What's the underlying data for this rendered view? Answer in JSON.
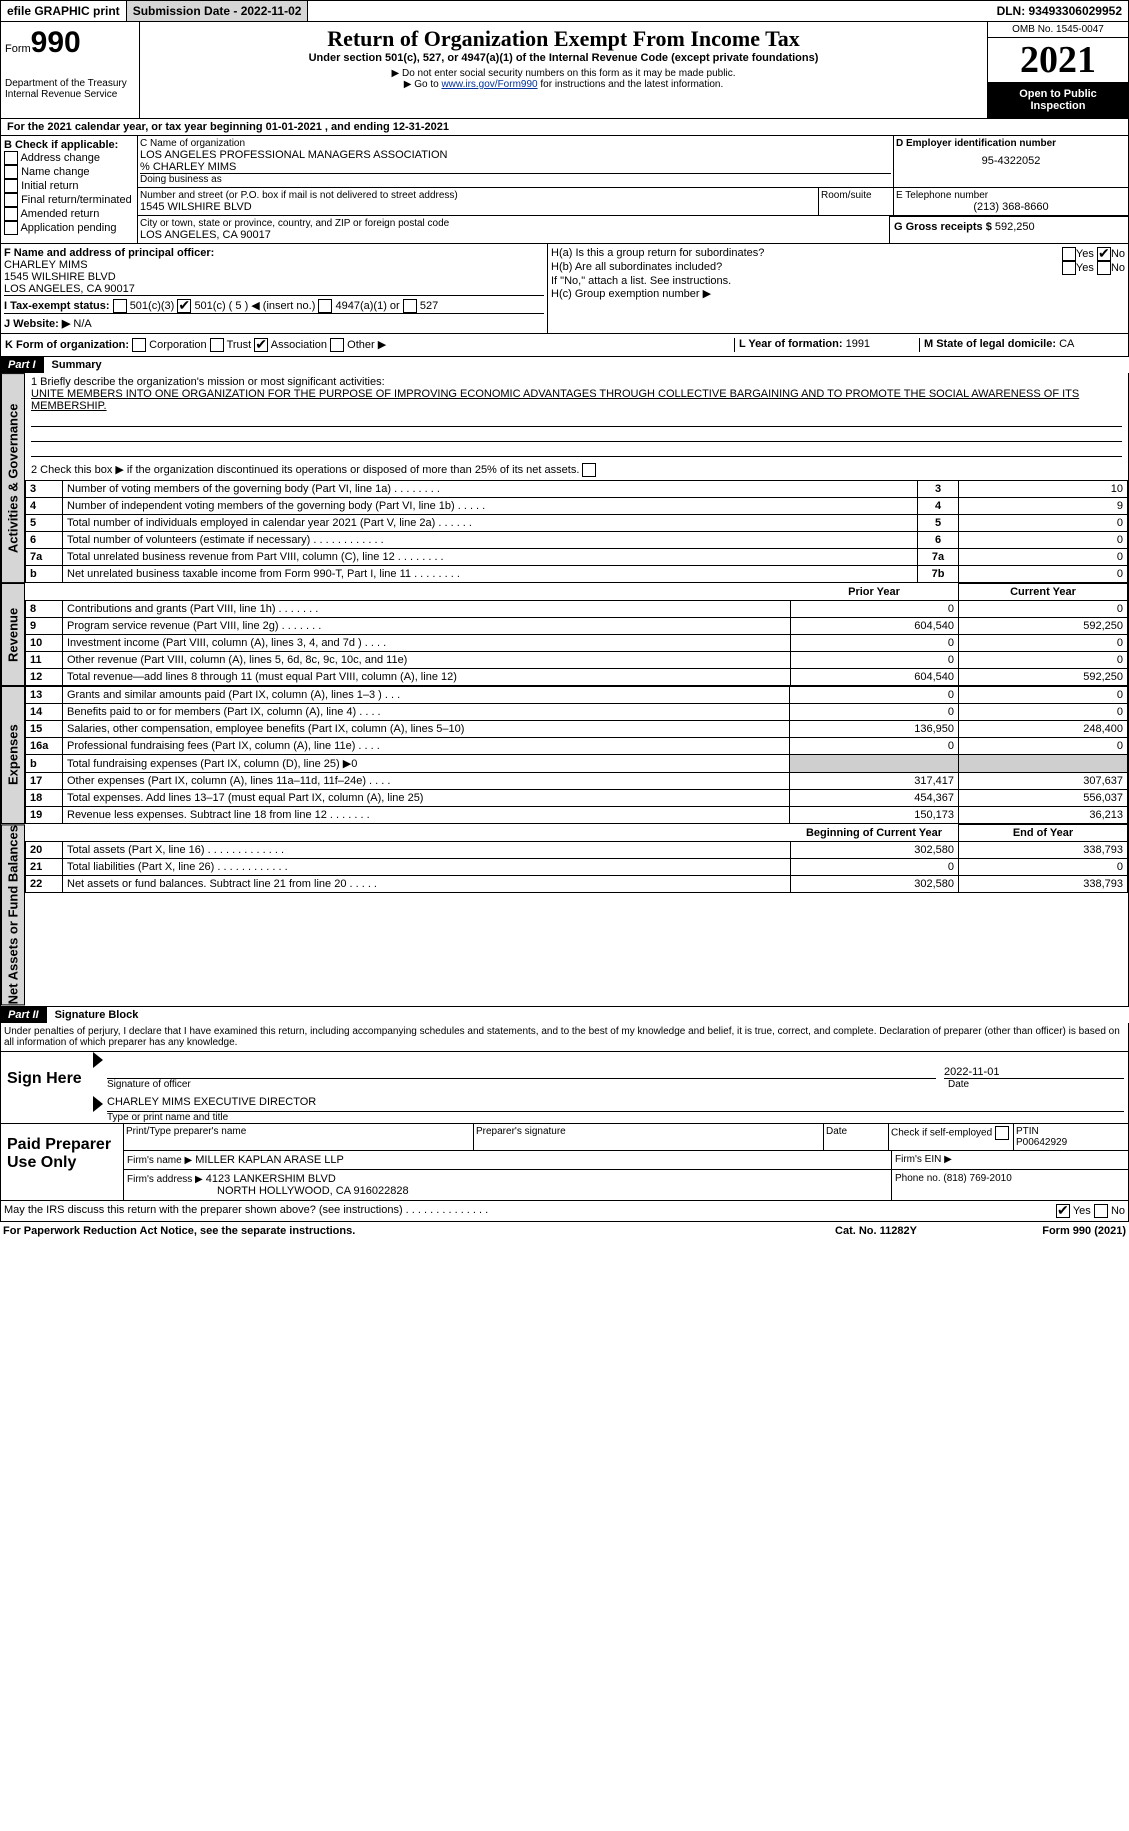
{
  "topbar": {
    "efile": "efile GRAPHIC print",
    "submission_label": "Submission Date - 2022-11-02",
    "dln": "DLN: 93493306029952"
  },
  "header": {
    "form": "990",
    "form_prefix": "Form",
    "title": "Return of Organization Exempt From Income Tax",
    "subtitle": "Under section 501(c), 527, or 4947(a)(1) of the Internal Revenue Code (except private foundations)",
    "note1": "▶ Do not enter social security numbers on this form as it may be made public.",
    "note2_pre": "▶ Go to ",
    "note2_link": "www.irs.gov/Form990",
    "note2_post": " for instructions and the latest information.",
    "dept": "Department of the Treasury",
    "irs": "Internal Revenue Service",
    "omb": "OMB No. 1545-0047",
    "year": "2021",
    "open": "Open to Public Inspection"
  },
  "periodA": "For the 2021 calendar year, or tax year beginning 01-01-2021   , and ending 12-31-2021",
  "boxB": {
    "label": "B Check if applicable:",
    "items": [
      "Address change",
      "Name change",
      "Initial return",
      "Final return/terminated",
      "Amended return",
      "Application pending"
    ]
  },
  "boxC": {
    "label": "C Name of organization",
    "line1": "LOS ANGELES PROFESSIONAL MANAGERS ASSOCIATION",
    "line2": "% CHARLEY MIMS",
    "dba_label": "Doing business as",
    "addr_label": "Number and street (or P.O. box if mail is not delivered to street address)",
    "room_label": "Room/suite",
    "addr": "1545 WILSHIRE BLVD",
    "city_label": "City or town, state or province, country, and ZIP or foreign postal code",
    "city": "LOS ANGELES, CA  90017"
  },
  "boxD": {
    "label": "D Employer identification number",
    "value": "95-4322052"
  },
  "boxE": {
    "label": "E Telephone number",
    "value": "(213) 368-8660"
  },
  "boxG": {
    "label": "G Gross receipts $",
    "value": "592,250"
  },
  "boxF": {
    "label": "F  Name and address of principal officer:",
    "name": "CHARLEY MIMS",
    "addr1": "1545 WILSHIRE BLVD",
    "addr2": "LOS ANGELES, CA  90017"
  },
  "boxH": {
    "a": "H(a)  Is this a group return for subordinates?",
    "b": "H(b)  Are all subordinates included?",
    "note": "If \"No,\" attach a list. See instructions.",
    "c": "H(c)  Group exemption number ▶",
    "yes": "Yes",
    "no": "No"
  },
  "boxI": {
    "label": "I   Tax-exempt status:",
    "c3": "501(c)(3)",
    "c": "501(c) ( 5 ) ◀ (insert no.)",
    "a4947": "4947(a)(1) or",
    "s527": "527"
  },
  "boxJ": {
    "label": "J   Website: ▶",
    "value": "N/A"
  },
  "boxK": {
    "label": "K Form of organization:",
    "opts": [
      "Corporation",
      "Trust",
      "Association",
      "Other ▶"
    ],
    "checked": 2
  },
  "boxL": {
    "label": "L Year of formation:",
    "value": "1991"
  },
  "boxM": {
    "label": "M State of legal domicile:",
    "value": "CA"
  },
  "part1": {
    "title": "Part I",
    "name": "Summary",
    "line1_label": "1   Briefly describe the organization's mission or most significant activities:",
    "mission": "UNITE MEMBERS INTO ONE ORGANIZATION FOR THE PURPOSE OF IMPROVING ECONOMIC ADVANTAGES THROUGH COLLECTIVE BARGAINING AND TO PROMOTE THE SOCIAL AWARENESS OF ITS MEMBERSHIP.",
    "line2": "2    Check this box ▶    if the organization discontinued its operations or disposed of more than 25% of its net assets.",
    "rows_ag": [
      {
        "n": "3",
        "t": "Number of voting members of the governing body (Part VI, line 1a)   .    .    .    .    .    .    .    .",
        "c": "3",
        "v": "10"
      },
      {
        "n": "4",
        "t": "Number of independent voting members of the governing body (Part VI, line 1b)   .    .    .    .    .",
        "c": "4",
        "v": "9"
      },
      {
        "n": "5",
        "t": "Total number of individuals employed in calendar year 2021 (Part V, line 2a)   .    .    .    .    .    .",
        "c": "5",
        "v": "0"
      },
      {
        "n": "6",
        "t": "Total number of volunteers (estimate if necessary)    .    .    .    .    .    .    .    .    .    .    .    .",
        "c": "6",
        "v": "0"
      },
      {
        "n": "7a",
        "t": "Total unrelated business revenue from Part VIII, column (C), line 12   .    .    .    .    .    .    .    .",
        "c": "7a",
        "v": "0"
      },
      {
        "n": "b",
        "t": "Net unrelated business taxable income from Form 990-T, Part I, line 11  .    .    .    .    .    .    .    .",
        "c": "7b",
        "v": "0"
      }
    ],
    "col_prior": "Prior Year",
    "col_curr": "Current Year",
    "rows_rev": [
      {
        "n": "8",
        "t": "Contributions and grants (Part VIII, line 1h)    .    .    .    .    .    .    .",
        "p": "0",
        "c": "0"
      },
      {
        "n": "9",
        "t": "Program service revenue (Part VIII, line 2g)   .    .    .    .    .    .    .",
        "p": "604,540",
        "c": "592,250"
      },
      {
        "n": "10",
        "t": "Investment income (Part VIII, column (A), lines 3, 4, and 7d )    .    .    .    .",
        "p": "0",
        "c": "0"
      },
      {
        "n": "11",
        "t": "Other revenue (Part VIII, column (A), lines 5, 6d, 8c, 9c, 10c, and 11e)",
        "p": "0",
        "c": "0"
      },
      {
        "n": "12",
        "t": "Total revenue—add lines 8 through 11 (must equal Part VIII, column (A), line 12)",
        "p": "604,540",
        "c": "592,250"
      }
    ],
    "rows_exp": [
      {
        "n": "13",
        "t": "Grants and similar amounts paid (Part IX, column (A), lines 1–3 )   .    .    .",
        "p": "0",
        "c": "0"
      },
      {
        "n": "14",
        "t": "Benefits paid to or for members (Part IX, column (A), line 4)   .    .    .    .",
        "p": "0",
        "c": "0"
      },
      {
        "n": "15",
        "t": "Salaries, other compensation, employee benefits (Part IX, column (A), lines 5–10)",
        "p": "136,950",
        "c": "248,400"
      },
      {
        "n": "16a",
        "t": "Professional fundraising fees (Part IX, column (A), line 11e)   .    .    .    .",
        "p": "0",
        "c": "0"
      },
      {
        "n": "b",
        "t": "Total fundraising expenses (Part IX, column (D), line 25) ▶0",
        "p": "shade",
        "c": "shade"
      },
      {
        "n": "17",
        "t": "Other expenses (Part IX, column (A), lines 11a–11d, 11f–24e)   .    .    .    .",
        "p": "317,417",
        "c": "307,637"
      },
      {
        "n": "18",
        "t": "Total expenses. Add lines 13–17 (must equal Part IX, column (A), line 25)",
        "p": "454,367",
        "c": "556,037"
      },
      {
        "n": "19",
        "t": "Revenue less expenses. Subtract line 18 from line 12  .    .    .    .    .    .    .",
        "p": "150,173",
        "c": "36,213"
      }
    ],
    "col_boy": "Beginning of Current Year",
    "col_eoy": "End of Year",
    "rows_na": [
      {
        "n": "20",
        "t": "Total assets (Part X, line 16)  .    .    .    .    .    .    .    .    .    .    .    .    .",
        "p": "302,580",
        "c": "338,793"
      },
      {
        "n": "21",
        "t": "Total liabilities (Part X, line 26)  .    .    .    .    .    .    .    .    .    .    .    .",
        "p": "0",
        "c": "0"
      },
      {
        "n": "22",
        "t": "Net assets or fund balances. Subtract line 21 from line 20   .    .    .    .    .",
        "p": "302,580",
        "c": "338,793"
      }
    ],
    "side_ag": "Activities & Governance",
    "side_rev": "Revenue",
    "side_exp": "Expenses",
    "side_na": "Net Assets or Fund Balances"
  },
  "part2": {
    "title": "Part II",
    "name": "Signature Block",
    "decl": "Under penalties of perjury, I declare that I have examined this return, including accompanying schedules and statements, and to the best of my knowledge and belief, it is true, correct, and complete. Declaration of preparer (other than officer) is based on all information of which preparer has any knowledge.",
    "sign_here": "Sign Here",
    "sig_officer": "Signature of officer",
    "sig_date": "2022-11-01",
    "date_label": "Date",
    "officer_name": "CHARLEY MIMS  EXECUTIVE DIRECTOR",
    "type_label": "Type or print name and title",
    "paid": "Paid Preparer Use Only",
    "prep_name_label": "Print/Type preparer's name",
    "prep_sig_label": "Preparer's signature",
    "prep_date_label": "Date",
    "check_self": "Check        if self-employed",
    "ptin_label": "PTIN",
    "ptin": "P00642929",
    "firm_name_label": "Firm's name    ▶",
    "firm_name": "MILLER KAPLAN ARASE LLP",
    "firm_ein_label": "Firm's EIN ▶",
    "firm_addr_label": "Firm's address ▶",
    "firm_addr1": "4123 LANKERSHIM BLVD",
    "firm_addr2": "NORTH HOLLYWOOD, CA  916022828",
    "phone_label": "Phone no.",
    "phone": "(818) 769-2010",
    "discuss": "May the IRS discuss this return with the preparer shown above? (see instructions)   .    .    .    .    .    .    .    .    .    .    .    .    .    .",
    "yes": "Yes",
    "no": "No"
  },
  "footer": {
    "left": "For Paperwork Reduction Act Notice, see the separate instructions.",
    "mid": "Cat. No. 11282Y",
    "right": "Form 990 (2021)"
  }
}
